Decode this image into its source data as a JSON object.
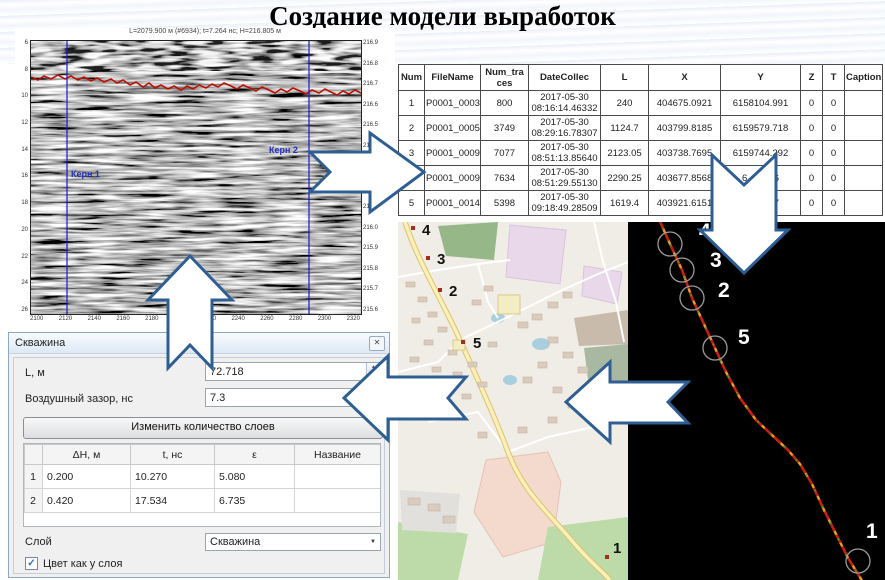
{
  "title": "Создание модели выработок",
  "radargram": {
    "header": "L=2079.900 м (#6934); t=7.264 нс; H=216.805 м",
    "core1_label": "Керн 1",
    "core2_label": "Керн 2",
    "left_ticks": [
      "6",
      "8",
      "10",
      "12",
      "14",
      "16",
      "18",
      "20",
      "22",
      "24",
      "26"
    ],
    "right_ticks": [
      "216.9",
      "216.8",
      "216.7",
      "216.6",
      "216.5",
      "216.4",
      "216.3",
      "216.2",
      "216.1",
      "216.0",
      "215.9",
      "215.8",
      "215.7",
      "215.6"
    ],
    "bottom_ticks": [
      "2100",
      "2120",
      "2140",
      "2160",
      "2180",
      "2200",
      "2220",
      "2240",
      "2260",
      "2280",
      "2300",
      "2320"
    ]
  },
  "files_table": {
    "columns": [
      "Num",
      "FileName",
      "Num_tra\nces",
      "DateCollec",
      "L",
      "X",
      "Y",
      "Z",
      "T",
      "Captions"
    ],
    "rows": [
      [
        "1",
        "P0001_0003",
        "800",
        "2017-05-30\n08:16:14.46332",
        "240",
        "404675.0921",
        "6158104.991",
        "0",
        "0",
        ""
      ],
      [
        "2",
        "P0001_0005",
        "3749",
        "2017-05-30\n08:29:16.78307",
        "1124.7",
        "403799.8185",
        "6159579.718",
        "0",
        "0",
        ""
      ],
      [
        "3",
        "P0001_0009",
        "7077",
        "2017-05-30\n08:51:13.85640",
        "2123.05",
        "403738.7695",
        "6159744.292",
        "0",
        "0",
        ""
      ],
      [
        "",
        "P0001_0009",
        "7634",
        "2017-05-30\n08:51:29.55130",
        "2290.25",
        "403677.8568",
        "6        16",
        "0",
        "0",
        ""
      ],
      [
        "5",
        "P0001_0014",
        "5398",
        "2017-05-30\n09:18:49.28509",
        "1619.4",
        "403921.6151",
        "6        77",
        "0",
        "0",
        ""
      ]
    ]
  },
  "map": {
    "markers": [
      {
        "label": "4",
        "dot": [
          15,
          6
        ],
        "text": [
          24,
          13
        ]
      },
      {
        "label": "3",
        "dot": [
          30,
          36
        ],
        "text": [
          39,
          42
        ]
      },
      {
        "label": "2",
        "dot": [
          42,
          68
        ],
        "text": [
          51,
          74
        ]
      },
      {
        "label": "5",
        "dot": [
          65,
          120
        ],
        "text": [
          75,
          126
        ]
      },
      {
        "label": "1",
        "dot": [
          209,
          335
        ],
        "text": [
          215,
          331
        ]
      }
    ]
  },
  "track_panel": {
    "markers": [
      {
        "label": "4",
        "circle": [
          42,
          22
        ],
        "text": [
          71,
          16
        ]
      },
      {
        "label": "3",
        "circle": [
          54,
          48
        ],
        "text": [
          82,
          45
        ]
      },
      {
        "label": "2",
        "circle": [
          64,
          76
        ],
        "text": [
          90,
          75
        ]
      },
      {
        "label": "5",
        "circle": [
          87,
          126
        ],
        "text": [
          110,
          122
        ]
      },
      {
        "label": "1",
        "circle": [
          230,
          339
        ],
        "text": [
          238,
          316
        ]
      }
    ]
  },
  "dialog": {
    "title": "Скважина",
    "l_label": "L, м",
    "l_value": "72.718",
    "air_label": "Воздушный зазор, нс",
    "air_value": "7.3",
    "button_label": "Изменить количество слоев",
    "layers_table": {
      "columns": [
        "ΔН, м",
        "t, нс",
        "ε",
        "Название"
      ],
      "rows": [
        [
          "1",
          "0.200",
          "10.270",
          "5.080",
          ""
        ],
        [
          "2",
          "0.420",
          "17.534",
          "6.735",
          ""
        ]
      ]
    },
    "layer_label": "Слой",
    "layer_combo_value": "Скважина",
    "checkbox_label": "Цвет как у слоя"
  },
  "colors": {
    "arrow_border": "#2E5E92",
    "track_red": "#C81F10",
    "map_road": "#F6E9A8"
  }
}
